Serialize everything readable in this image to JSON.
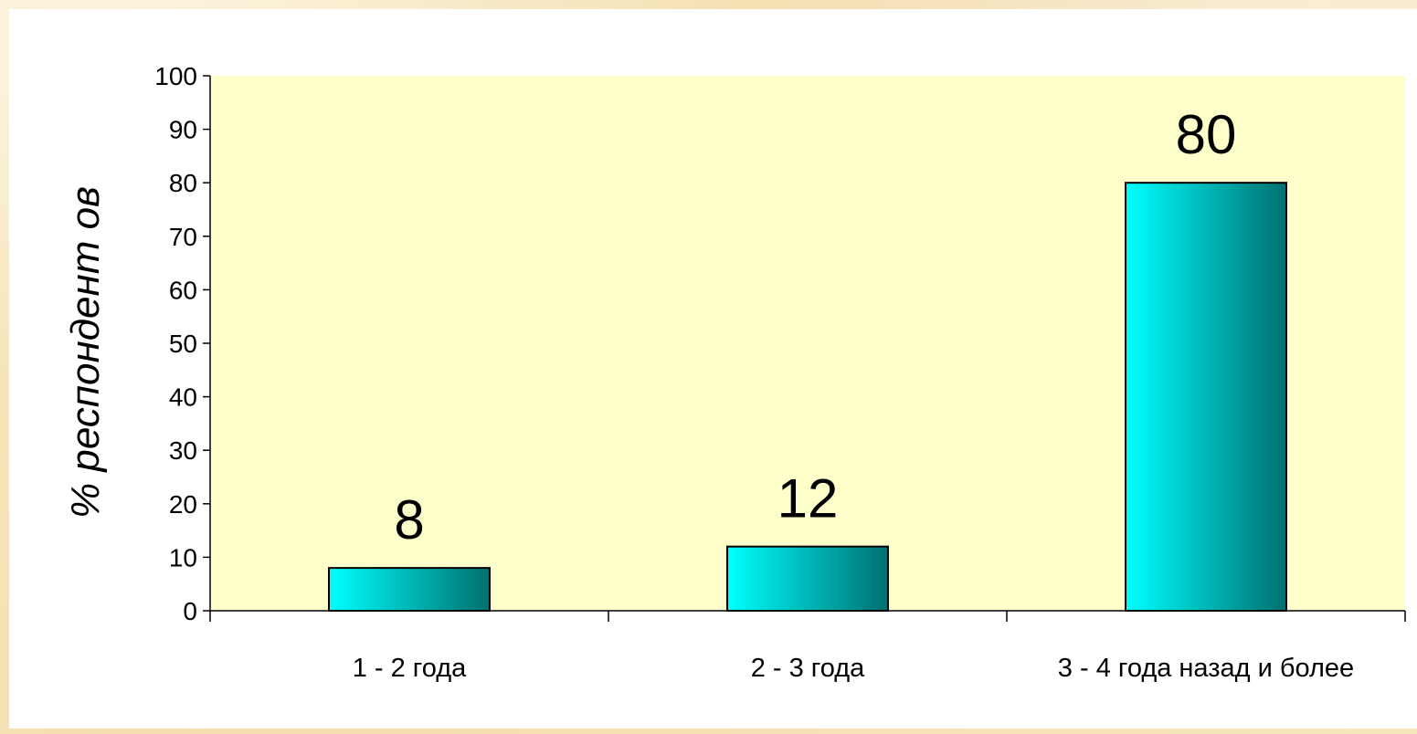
{
  "chart_data": {
    "type": "bar",
    "title": "",
    "xlabel": "",
    "ylabel": "% респондент ов",
    "categories": [
      "1 - 2 года",
      "2 - 3 года",
      "3 - 4 года назад и более"
    ],
    "values": [
      8,
      12,
      80
    ],
    "data_labels": [
      "8",
      "12",
      "80"
    ],
    "ylim": [
      0,
      100
    ],
    "yticks": [
      0,
      10,
      20,
      30,
      40,
      50,
      60,
      70,
      80,
      90,
      100
    ],
    "grid": false,
    "legend": "none"
  },
  "colors": {
    "plot_area": "#ffffcc",
    "bar_light": "#00ffff",
    "bar_dark": "#007070",
    "axis": "#000000",
    "slide_background": "#f6e6b4"
  }
}
